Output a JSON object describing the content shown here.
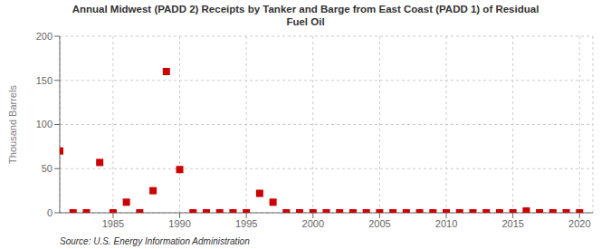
{
  "chart_data": {
    "type": "scatter",
    "title": "Annual Midwest (PADD 2) Receipts by Tanker and Barge from East Coast (PADD 1) of Residual\nFuel Oil",
    "ylabel": "Thousand Barrels",
    "annotation": "Source: U.S. Energy Information Administration",
    "x": [
      1981,
      1982,
      1983,
      1984,
      1985,
      1986,
      1987,
      1988,
      1989,
      1990,
      1991,
      1992,
      1993,
      1994,
      1995,
      1996,
      1997,
      1998,
      1999,
      2000,
      2001,
      2002,
      2003,
      2004,
      2005,
      2006,
      2007,
      2008,
      2009,
      2010,
      2011,
      2012,
      2013,
      2014,
      2015,
      2016,
      2017,
      2018,
      2019,
      2020
    ],
    "values": [
      70,
      0,
      0,
      57,
      0,
      12,
      0,
      25,
      160,
      49,
      0,
      0,
      0,
      0,
      0,
      22,
      12,
      0,
      0,
      0,
      0,
      0,
      0,
      0,
      0,
      0,
      0,
      0,
      0,
      0,
      0,
      0,
      0,
      0,
      0,
      2,
      0,
      0,
      0,
      0
    ],
    "color": "#cc0000",
    "marker": "square",
    "xlim": [
      1981,
      2021
    ],
    "ylim": [
      0,
      200
    ],
    "xticks": [
      1985,
      1990,
      1995,
      2000,
      2005,
      2010,
      2015,
      2020
    ],
    "yticks": [
      0,
      50,
      100,
      150,
      200
    ],
    "grid": true
  }
}
